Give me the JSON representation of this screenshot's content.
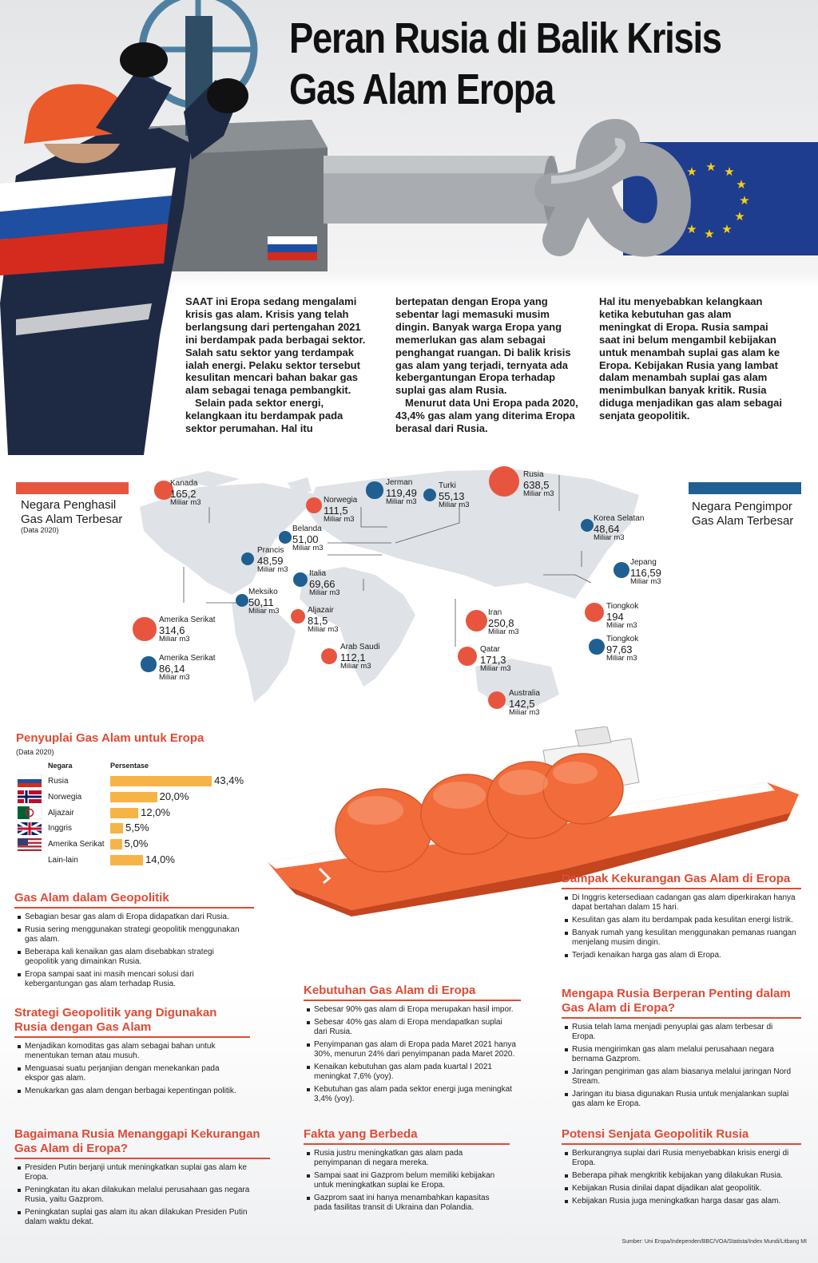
{
  "header": {
    "title_lines": [
      "Peran Rusia di Balik Krisis",
      "Gas Alam Eropa"
    ]
  },
  "intro": {
    "columns": [
      [
        "SAAT ini Eropa sedang mengalami krisis gas alam. Krisis yang telah berlangsung dari pertengahan 2021 ini berdampak pada berbagai sektor. Salah satu sektor yang terdampak ialah energi. Pelaku sektor tersebut kesulitan mencari bahan bakar gas alam sebagai tenaga pembangkit.",
        "Selain pada sektor energi, kelangkaan itu berdampak pada sektor perumahan. Hal itu"
      ],
      [
        "bertepatan dengan Eropa yang sebentar lagi memasuki musim dingin. Banyak warga Eropa yang memerlukan gas alam sebagai penghangat ruangan. Di balik krisis gas alam yang terjadi, ternyata ada kebergantungan Eropa terhadap suplai gas alam Rusia.",
        "Menurut data Uni Eropa pada 2020, 43,4% gas alam yang diterima Eropa berasal dari Rusia."
      ],
      [
        "Hal itu menyebabkan kelangkaan ketika kebutuhan gas alam meningkat di Eropa. Rusia sampai saat ini belum mengambil kebijakan untuk menambah suplai gas alam ke Eropa. Kebijakan Rusia yang lambat dalam menambah suplai gas alam menimbulkan banyak kritik. Rusia diduga menjadikan gas alam sebagai senjata geopolitik."
      ]
    ]
  },
  "map": {
    "producers_legend": "Negara Penghasil Gas Alam Terbesar",
    "producers_note": "(Data 2020)",
    "importers_legend": "Negara Pengimpor Gas Alam Terbesar",
    "unit": "Miliar m3",
    "producers_color": "#e8553f",
    "importers_color": "#1f5f92",
    "producers": [
      {
        "name": "Kanada",
        "value": 165.2,
        "label": "165,2"
      },
      {
        "name": "Norwegia",
        "value": 111.5,
        "label": "111,5"
      },
      {
        "name": "Rusia",
        "value": 638.5,
        "label": "638,5"
      },
      {
        "name": "Amerika Serikat",
        "value": 314.6,
        "label": "314,6"
      },
      {
        "name": "Aljazair",
        "value": 81.5,
        "label": "81,5"
      },
      {
        "name": "Arab Saudi",
        "value": 112.1,
        "label": "112,1"
      },
      {
        "name": "Iran",
        "value": 250.8,
        "label": "250,8"
      },
      {
        "name": "Qatar",
        "value": 171.3,
        "label": "171,3"
      },
      {
        "name": "Tiongkok",
        "value": 194
      },
      {
        "name": "Australia",
        "value": 142.5,
        "label": "142,5"
      }
    ],
    "importers": [
      {
        "name": "Jerman",
        "value": 119.49,
        "label": "119,49"
      },
      {
        "name": "Turki",
        "value": 55.13,
        "label": "55,13"
      },
      {
        "name": "Belanda",
        "value": 51,
        "label": "51,00"
      },
      {
        "name": "Prancis",
        "value": 48.59,
        "label": "48,59"
      },
      {
        "name": "Italia",
        "value": 69.66,
        "label": "69,66"
      },
      {
        "name": "Meksiko",
        "value": 50.11,
        "label": "50,11"
      },
      {
        "name": "Amerika Serikat",
        "value": 86.14,
        "label": "86,14"
      },
      {
        "name": "Korea Selatan",
        "value": 48.64,
        "label": "48,64"
      },
      {
        "name": "Jepang",
        "value": 116.59,
        "label": "116,59"
      },
      {
        "name": "Tiongkok",
        "value": 97.63,
        "label": "97,63"
      }
    ]
  },
  "suppliers": {
    "title": "Penyuplai Gas Alam untuk Eropa",
    "note": "(Data 2020)",
    "col_country": "Negara",
    "col_share": "Persentase",
    "color": "#f6b347",
    "rows": [
      {
        "name": "Rusia",
        "value": 43.4,
        "label": "43,4%"
      },
      {
        "name": "Norwegia",
        "value": 20.0,
        "label": "20,0%"
      },
      {
        "name": "Aljazair",
        "value": 12.0,
        "label": "12,0%"
      },
      {
        "name": "Inggris",
        "value": 5.5,
        "label": "5,5%"
      },
      {
        "name": "Amerika Serikat",
        "value": 5.0,
        "label": "5,0%"
      },
      {
        "name": "Lain-lain",
        "value": 14.0,
        "label": "14,0%"
      }
    ]
  },
  "sections": [
    {
      "title": "Gas Alam dalam Geopolitik",
      "items": [
        "Sebagian besar gas alam di Eropa didapatkan dari Rusia.",
        "Rusia sering menggunakan strategi geopolitik menggunakan gas alam.",
        "Beberapa kali kenaikan gas alam disebabkan strategi geopolitik yang dimainkan Rusia.",
        "Eropa sampai saat ini masih mencari solusi dari kebergantungan gas alam terhadap Rusia."
      ]
    },
    {
      "title": "Strategi Geopolitik yang Digunakan Rusia dengan Gas Alam",
      "items": [
        "Menjadikan komoditas gas alam sebagai bahan untuk menentukan teman atau musuh.",
        "Menguasai suatu perjanjian dengan menekankan pada ekspor gas alam.",
        "Menukarkan gas alam dengan berbagai kepentingan politik."
      ]
    },
    {
      "title": "Bagaimana Rusia Menanggapi Kekurangan Gas Alam di Eropa?",
      "items": [
        "Presiden Putin berjanji untuk meningkatkan suplai gas alam ke Eropa.",
        "Peningkatan itu akan dilakukan melalui perusahaan gas negara Rusia, yaitu Gazprom.",
        "Peningkatan suplai gas alam itu akan dilakukan Presiden Putin dalam waktu dekat."
      ]
    },
    {
      "title": "Kebutuhan Gas Alam di Eropa",
      "items": [
        "Sebesar 90% gas alam di Eropa merupakan hasil impor.",
        "Sebesar 40% gas alam di Eropa mendapatkan suplai dari Rusia.",
        "Penyimpanan gas alam di Eropa pada Maret 2021 hanya 30%, menurun 24% dari penyimpanan pada Maret 2020.",
        "Kenaikan kebutuhan gas alam pada kuartal I 2021 meningkat 7,6% (yoy).",
        "Kebutuhan gas alam pada sektor energi juga meningkat 3,4% (yoy)."
      ]
    },
    {
      "title": "Fakta yang Berbeda",
      "items": [
        "Rusia justru meningkatkan gas alam pada penyimpanan di negara mereka.",
        "Sampai saat ini Gazprom belum memiliki kebijakan untuk meningkatkan suplai ke Eropa.",
        "Gazprom saat ini hanya menambahkan kapasitas pada fasilitas transit di Ukraina dan Polandia."
      ]
    },
    {
      "title": "Dampak Kekurangan Gas Alam di Eropa",
      "items": [
        "Di Inggris ketersediaan cadangan gas alam diperkirakan hanya dapat bertahan dalam 15 hari.",
        "Kesulitan gas alam itu berdampak pada kesulitan energi listrik.",
        "Banyak rumah yang kesulitan menggunakan pemanas ruangan menjelang musim dingin.",
        "Terjadi kenaikan harga gas alam di Eropa."
      ]
    },
    {
      "title": "Mengapa Rusia Berperan Penting dalam Gas Alam di Eropa?",
      "items": [
        "Rusia telah lama menjadi penyuplai gas alam terbesar di Eropa.",
        "Rusia mengirimkan gas alam melalui perusahaan negara bernama Gazprom.",
        "Jaringan pengiriman gas alam biasanya melalui jaringan Nord Stream.",
        "Jaringan itu biasa digunakan Rusia untuk menjalankan suplai gas alam ke Eropa."
      ]
    },
    {
      "title": "Potensi Senjata Geopolitik Rusia",
      "items": [
        "Berkurangnya suplai dari Rusia menyebabkan krisis energi di Eropa.",
        "Beberapa pihak mengkritik kebijakan yang dilakukan Rusia.",
        "Kebijakan Rusia dinilai dapat dijadikan alat geopolitik.",
        "Kebijakan Rusia juga meningkatkan harga dasar gas alam."
      ]
    }
  ],
  "footer": {
    "source": "Sumber: Uni Eropa/Independen/BBC/VOA/Statista/Index Mundi/Litbang MI"
  }
}
